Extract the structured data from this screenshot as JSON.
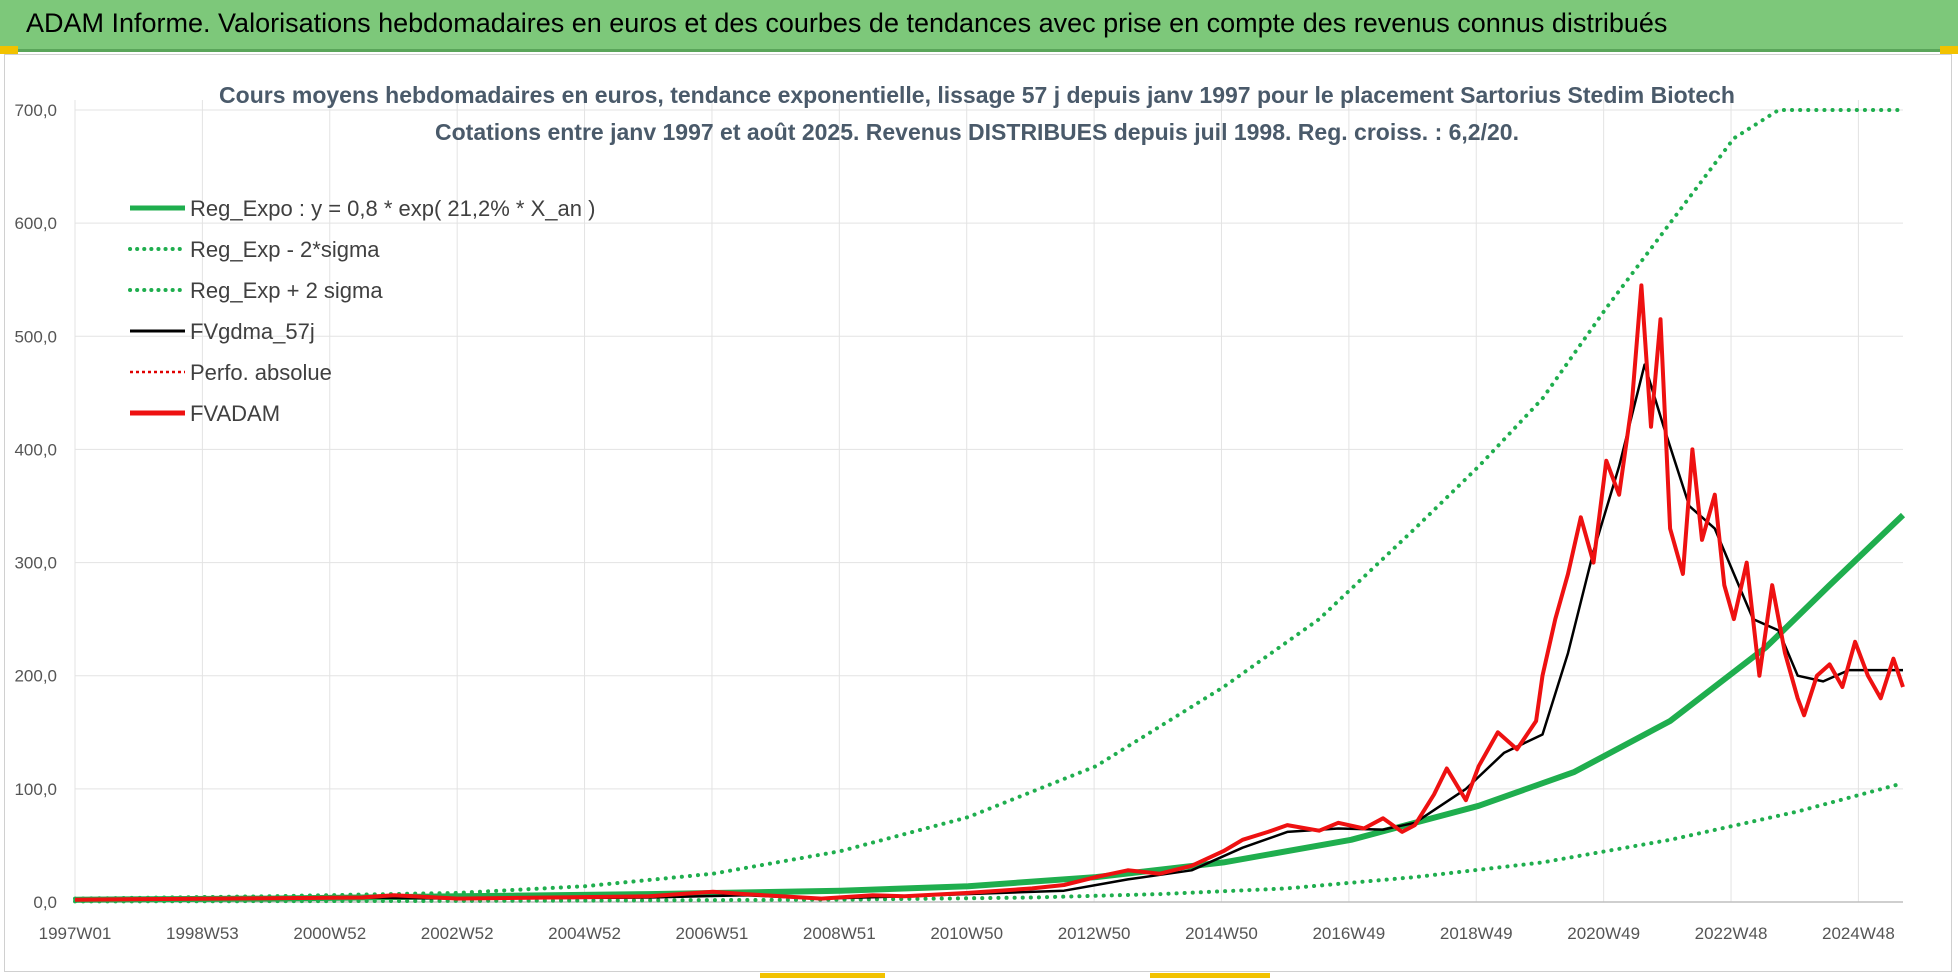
{
  "header": {
    "title": "ADAM Informe. Valorisations hebdomadaires en euros et des courbes de tendances avec prise en compte des revenus connus distribués"
  },
  "colors": {
    "header_bg": "#7dc87a",
    "reg_expo": "#1fae4e",
    "sigma_bands": "#1fae4e",
    "gdma": "#000000",
    "perfo": "#e00000",
    "fvadam": "#ee1111",
    "accent_marks": "#f2c200"
  },
  "chart_data": {
    "type": "line",
    "title_line1": "Cours moyens hebdomadaires en euros, tendance exponentielle, lissage 57 j depuis janv 1997 pour le placement Sartorius Stedim Biotech",
    "title_line2": "Cotations entre janv 1997 et août 2025. Revenus DISTRIBUES depuis juil 1998. Reg. croiss. : 6,2/20.",
    "xlabel": "",
    "ylabel": "",
    "ylim": [
      0,
      700
    ],
    "y_ticks": [
      "0,0",
      "100,0",
      "200,0",
      "300,0",
      "400,0",
      "500,0",
      "600,0",
      "700,0"
    ],
    "x_ticks": [
      "1997W01",
      "1998W53",
      "2000W52",
      "2002W52",
      "2004W52",
      "2006W51",
      "2008W51",
      "2010W50",
      "2012W50",
      "2014W50",
      "2016W49",
      "2018W49",
      "2020W49",
      "2022W48",
      "2024W48"
    ],
    "x_range_years": [
      1997.0,
      2025.65
    ],
    "grid": true,
    "legend_position": "top-left",
    "legend": [
      {
        "key": "reg_expo",
        "label": "Reg_Expo : y = 0,8 * exp( 21,2% *  X_an )",
        "style": "solid-thick",
        "color": "#1fae4e"
      },
      {
        "key": "reg_minus",
        "label": "Reg_Exp - 2*sigma",
        "style": "dotted",
        "color": "#1fae4e"
      },
      {
        "key": "reg_plus",
        "label": "Reg_Exp + 2 sigma",
        "style": "dotted",
        "color": "#1fae4e"
      },
      {
        "key": "gdma",
        "label": "FVgdma_57j",
        "style": "solid",
        "color": "#000000"
      },
      {
        "key": "perfo",
        "label": "Perfo. absolue",
        "style": "dotted",
        "color": "#e00000"
      },
      {
        "key": "fvadam",
        "label": "FVADAM",
        "style": "solid-thick",
        "color": "#ee1111"
      }
    ],
    "series": [
      {
        "key": "reg_expo",
        "name": "Reg_Expo : y = 0,8 * exp( 21,2% *  X_an )",
        "x": [
          1997.0,
          2000.0,
          2003.0,
          2006.0,
          2009.0,
          2011.0,
          2013.0,
          2015.0,
          2017.0,
          2019.0,
          2020.5,
          2022.0,
          2023.5,
          2024.5,
          2025.65
        ],
        "y": [
          2,
          3,
          5,
          7,
          10,
          14,
          22,
          35,
          55,
          85,
          115,
          160,
          225,
          280,
          342
        ]
      },
      {
        "key": "reg_minus",
        "name": "Reg_Exp - 2*sigma",
        "x": [
          1997.0,
          2003.0,
          2009.0,
          2012.0,
          2014.0,
          2016.0,
          2018.0,
          2020.0,
          2022.0,
          2024.0,
          2025.65
        ],
        "y": [
          0.5,
          1,
          2,
          4,
          7,
          12,
          22,
          35,
          55,
          80,
          105
        ]
      },
      {
        "key": "reg_plus",
        "name": "Reg_Exp + 2 sigma",
        "x": [
          1997.0,
          2000.0,
          2003.0,
          2005.0,
          2007.0,
          2009.0,
          2011.0,
          2013.0,
          2015.0,
          2016.5,
          2018.0,
          2019.0,
          2020.0,
          2021.0,
          2022.0,
          2023.0,
          2023.7,
          2025.65
        ],
        "y": [
          3,
          5,
          8,
          14,
          25,
          45,
          75,
          120,
          190,
          250,
          330,
          385,
          445,
          525,
          600,
          675,
          700,
          700
        ]
      },
      {
        "key": "gdma",
        "name": "FVgdma_57j",
        "x": [
          1997.0,
          2001.5,
          2003.0,
          2006.0,
          2007.5,
          2008.7,
          2010.0,
          2012.5,
          2013.5,
          2014.5,
          2015.3,
          2016.0,
          2016.8,
          2017.5,
          2018.0,
          2018.8,
          2019.4,
          2020.0,
          2020.4,
          2020.8,
          2021.2,
          2021.6,
          2021.9,
          2022.3,
          2022.7,
          2023.0,
          2023.3,
          2023.7,
          2024.0,
          2024.4,
          2024.8,
          2025.2,
          2025.65
        ],
        "y": [
          2,
          4,
          3,
          4,
          6,
          3,
          5,
          10,
          20,
          28,
          48,
          62,
          65,
          64,
          70,
          100,
          132,
          148,
          220,
          310,
          385,
          475,
          420,
          350,
          330,
          290,
          250,
          240,
          200,
          195,
          205,
          205,
          205
        ]
      },
      {
        "key": "fvadam",
        "name": "FVADAM",
        "x": [
          1997.0,
          2001.5,
          2002.0,
          2003.0,
          2006.0,
          2007.0,
          2007.5,
          2008.7,
          2009.5,
          2010.0,
          2011.0,
          2012.0,
          2012.5,
          2013.0,
          2013.5,
          2014.0,
          2014.5,
          2015.0,
          2015.3,
          2015.7,
          2016.0,
          2016.5,
          2016.8,
          2017.2,
          2017.5,
          2017.8,
          2018.0,
          2018.3,
          2018.5,
          2018.8,
          2019.0,
          2019.3,
          2019.6,
          2019.9,
          2020.0,
          2020.2,
          2020.4,
          2020.6,
          2020.8,
          2021.0,
          2021.2,
          2021.4,
          2021.55,
          2021.7,
          2021.85,
          2022.0,
          2022.2,
          2022.35,
          2022.5,
          2022.7,
          2022.85,
          2023.0,
          2023.2,
          2023.4,
          2023.6,
          2023.8,
          2024.0,
          2024.1,
          2024.3,
          2024.5,
          2024.7,
          2024.9,
          2025.1,
          2025.3,
          2025.5,
          2025.65
        ],
        "y": [
          2,
          4,
          6,
          3,
          5,
          9,
          7,
          3,
          6,
          5,
          8,
          12,
          15,
          22,
          28,
          25,
          32,
          45,
          55,
          62,
          68,
          63,
          70,
          65,
          74,
          62,
          68,
          95,
          118,
          90,
          120,
          150,
          135,
          160,
          200,
          250,
          290,
          340,
          300,
          390,
          360,
          440,
          545,
          420,
          515,
          330,
          290,
          400,
          320,
          360,
          280,
          250,
          300,
          200,
          280,
          220,
          180,
          165,
          200,
          210,
          190,
          230,
          200,
          180,
          215,
          190
        ]
      }
    ]
  }
}
